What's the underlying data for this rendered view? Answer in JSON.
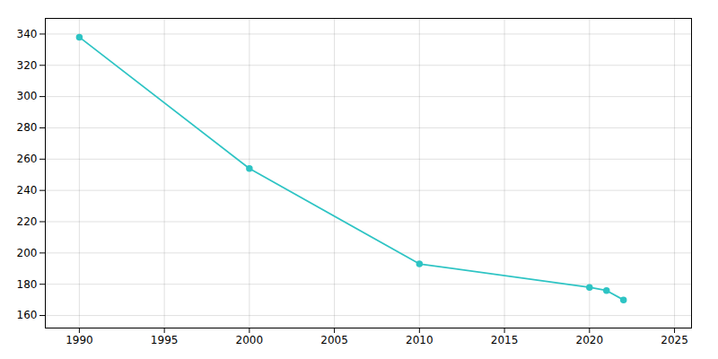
{
  "chart_data": {
    "type": "line",
    "x": [
      1990,
      2000,
      2010,
      2020,
      2021,
      2022
    ],
    "values": [
      338,
      254,
      193,
      178,
      176,
      170
    ],
    "color": "#2ec4c4",
    "marker": "circle",
    "xlim": [
      1988,
      2026
    ],
    "xticks": [
      1990,
      1995,
      2000,
      2005,
      2010,
      2015,
      2020,
      2025
    ],
    "ylim": [
      152,
      350
    ],
    "yticks": [
      160,
      180,
      200,
      220,
      240,
      260,
      280,
      300,
      320,
      340
    ],
    "grid": true
  }
}
